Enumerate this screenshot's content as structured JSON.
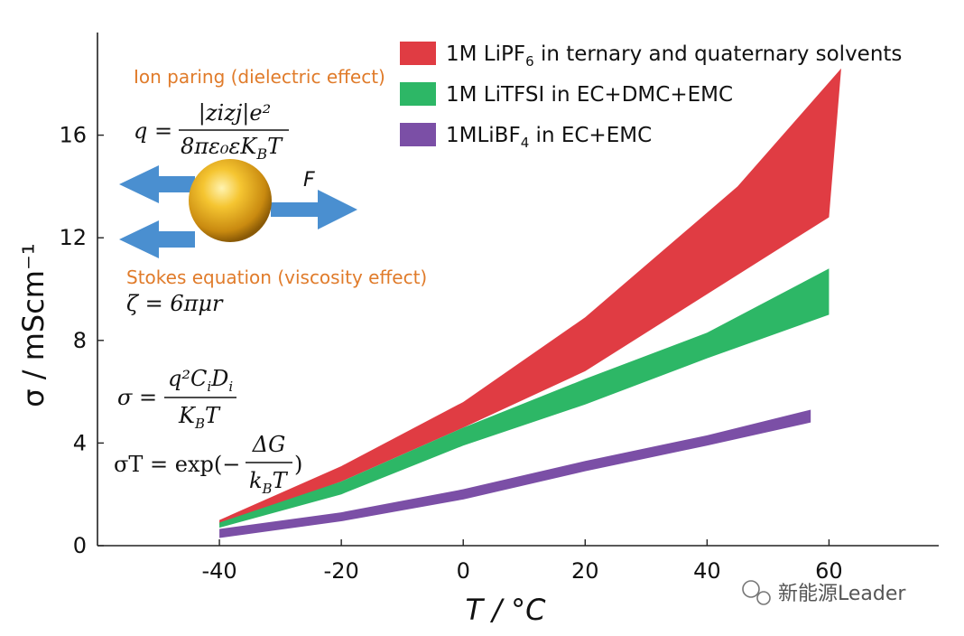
{
  "chart_data": {
    "type": "area",
    "title": "",
    "xlabel": "T / °C",
    "ylabel": "σ / mScm⁻¹",
    "xlim": [
      -60,
      78
    ],
    "ylim": [
      0,
      20
    ],
    "xticks": [
      -40,
      -20,
      0,
      20,
      40,
      60
    ],
    "yticks": [
      0,
      4,
      8,
      12,
      16
    ],
    "legend_position": "top-right",
    "series": [
      {
        "name": "1M LiPF6 in ternary and quaternary solvents",
        "legend_main": "1M LiPF",
        "legend_sub": "6",
        "legend_rest": " in ternary and quaternary solvents",
        "color": "#e03c43",
        "upper": [
          [
            -40,
            1.0
          ],
          [
            -20,
            3.1
          ],
          [
            0,
            5.6
          ],
          [
            20,
            8.9
          ],
          [
            45,
            14.0
          ],
          [
            62,
            18.6
          ]
        ],
        "lower": [
          [
            -40,
            0.8
          ],
          [
            -20,
            2.5
          ],
          [
            0,
            4.6
          ],
          [
            20,
            6.8
          ],
          [
            40,
            9.8
          ],
          [
            60,
            12.8
          ]
        ]
      },
      {
        "name": "1M LiTFSI in EC+DMC+EMC",
        "legend_main": "1M LiTFSI in EC+DMC+EMC",
        "legend_sub": "",
        "legend_rest": "",
        "color": "#2db766",
        "upper": [
          [
            -40,
            0.9
          ],
          [
            -20,
            2.5
          ],
          [
            0,
            4.6
          ],
          [
            20,
            6.5
          ],
          [
            40,
            8.3
          ],
          [
            60,
            10.8
          ]
        ],
        "lower": [
          [
            -40,
            0.7
          ],
          [
            -20,
            2.0
          ],
          [
            0,
            3.9
          ],
          [
            20,
            5.5
          ],
          [
            40,
            7.3
          ],
          [
            60,
            9.0
          ]
        ]
      },
      {
        "name": "1MLiBF4 in EC+EMC",
        "legend_main": "1MLiBF",
        "legend_sub": "4",
        "legend_rest": " in EC+EMC",
        "color": "#7b4fa6",
        "upper": [
          [
            -40,
            0.65
          ],
          [
            -20,
            1.3
          ],
          [
            0,
            2.2
          ],
          [
            20,
            3.3
          ],
          [
            40,
            4.3
          ],
          [
            57,
            5.3
          ]
        ],
        "lower": [
          [
            -40,
            0.3
          ],
          [
            -20,
            0.95
          ],
          [
            0,
            1.8
          ],
          [
            20,
            2.9
          ],
          [
            40,
            3.9
          ],
          [
            57,
            4.8
          ]
        ]
      }
    ]
  },
  "annotations": {
    "ion_pairing": "Ion paring (dielectric effect)",
    "stokes": "Stokes equation (viscosity effect)",
    "force_label": "F",
    "eq_q_lhs": "q =",
    "eq_q_num": "|zizj|e²",
    "eq_q_den": "8πε₀εK",
    "eq_q_den_sub": "B",
    "eq_q_den_rest": "T",
    "eq_zeta": "ζ = 6πμr",
    "eq_sigma_lhs": "σ =",
    "eq_sigma_num": "q²C",
    "eq_sigma_num_sub": "i",
    "eq_sigma_num_rest": "D",
    "eq_sigma_num_sub2": "i",
    "eq_sigma_den": "K",
    "eq_sigma_den_sub": "B",
    "eq_sigma_den_rest": "T",
    "eq_sT_lhs": "σT = exp(−",
    "eq_sT_num": "ΔG",
    "eq_sT_den": "k",
    "eq_sT_den_sub": "B",
    "eq_sT_den_rest": "T",
    "eq_sT_close": ")"
  },
  "watermark": "新能源Leader",
  "colors": {
    "arrow": "#4a8fd0",
    "sphere": "#f0b323"
  }
}
